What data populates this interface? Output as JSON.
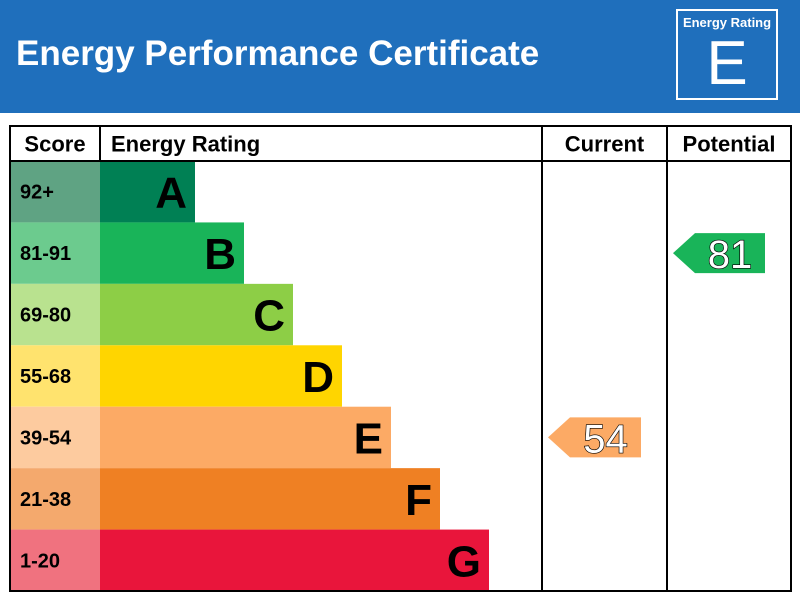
{
  "header": {
    "title": "Energy Performance Certificate",
    "badge_label": "Energy Rating",
    "badge_letter": "E"
  },
  "colors": {
    "header_bg": "#1f6fbc",
    "bands": [
      "#008054",
      "#19b459",
      "#8dce46",
      "#ffd500",
      "#fcaa65",
      "#ef8023",
      "#e9153b"
    ],
    "score_cells": [
      "#5fa383",
      "#6ccb8e",
      "#b9e28f",
      "#ffe36e",
      "#fdcb9f",
      "#f4a96d",
      "#f0727f"
    ]
  },
  "chart_data": {
    "type": "table",
    "columns": [
      "Score",
      "Energy Rating",
      "Current",
      "Potential"
    ],
    "bands": [
      {
        "score": "92+",
        "rating": "A"
      },
      {
        "score": "81-91",
        "rating": "B"
      },
      {
        "score": "69-80",
        "rating": "C"
      },
      {
        "score": "55-68",
        "rating": "D"
      },
      {
        "score": "39-54",
        "rating": "E"
      },
      {
        "score": "21-38",
        "rating": "F"
      },
      {
        "score": "1-20",
        "rating": "G"
      }
    ],
    "current": {
      "value": 54,
      "rating": "E"
    },
    "potential": {
      "value": 81,
      "rating": "B"
    }
  }
}
